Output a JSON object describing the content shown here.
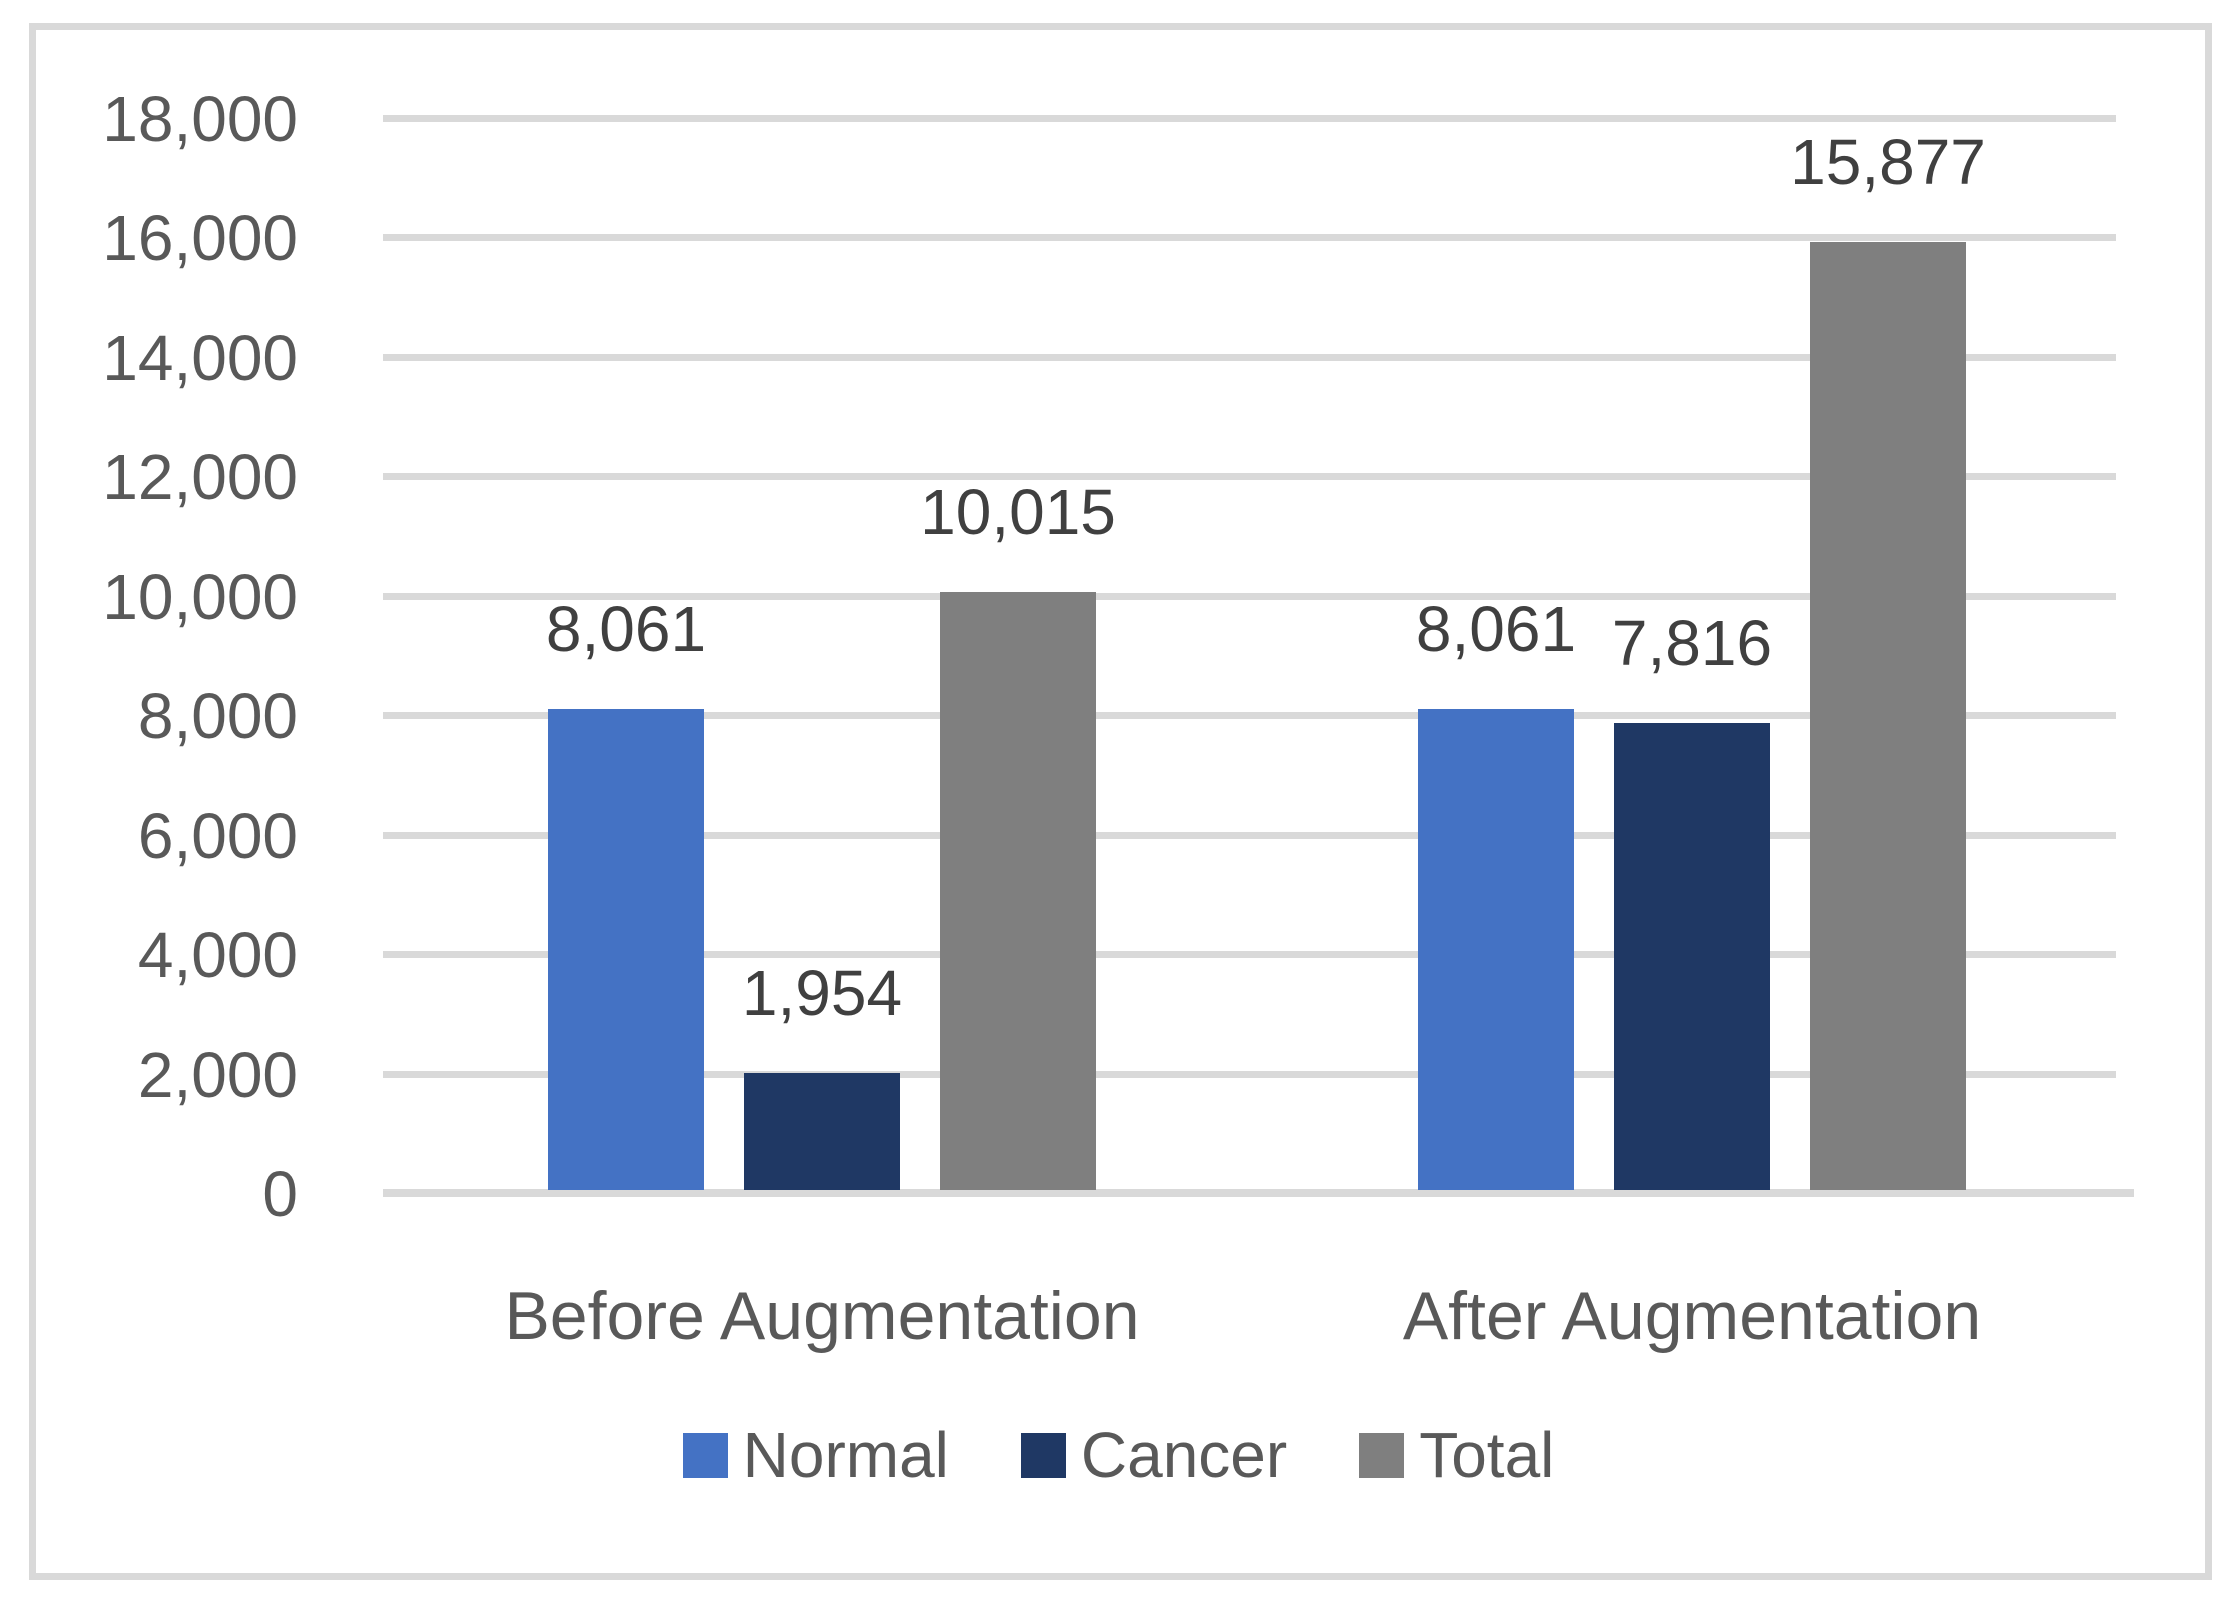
{
  "chart_data": {
    "type": "bar",
    "title": "",
    "xlabel": "",
    "ylabel": "",
    "categories": [
      "Before Augmentation",
      "After Augmentation"
    ],
    "series": [
      {
        "name": "Normal",
        "values": [
          8061,
          8061
        ],
        "labels": [
          "8,061",
          "8,061"
        ],
        "color": "#4472C4"
      },
      {
        "name": "Cancer",
        "values": [
          1954,
          7816
        ],
        "labels": [
          "1,954",
          "7,816"
        ],
        "color": "#1F3864"
      },
      {
        "name": "Total",
        "values": [
          10015,
          15877
        ],
        "labels": [
          "10,015",
          "15,877"
        ],
        "color": "#7F7F7F"
      }
    ],
    "ylim": [
      0,
      18000
    ],
    "ytick_step": 2000,
    "ytick_labels": [
      "0",
      "2,000",
      "4,000",
      "6,000",
      "8,000",
      "10,000",
      "12,000",
      "14,000",
      "16,000",
      "18,000"
    ],
    "grid": true,
    "legend_position": "bottom"
  },
  "colors": {
    "background": "#FFFFFF",
    "frame_border": "#D9D9D9",
    "gridline": "#D9D9D9",
    "axis_line": "#D9D9D9",
    "tick_label_text": "#595959",
    "category_label_text": "#595959",
    "data_label_text": "#404040",
    "legend_text": "#595959"
  }
}
